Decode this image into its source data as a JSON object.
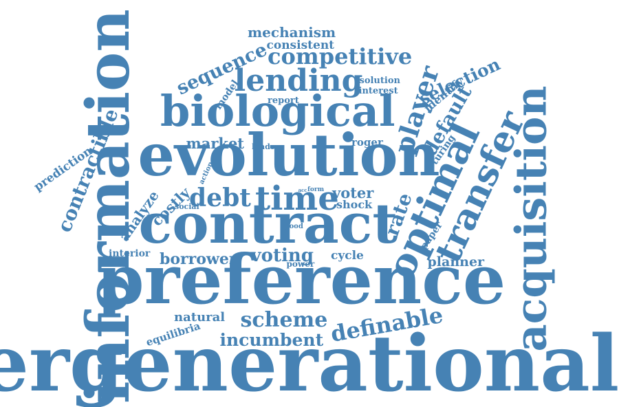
{
  "color": "#4682b4",
  "words": [
    {
      "id": "intergenerational",
      "text": "intergenerational",
      "weight": 1.0
    },
    {
      "id": "preference",
      "text": "preference",
      "weight": 0.9
    },
    {
      "id": "information",
      "text": "information",
      "weight": 0.85
    },
    {
      "id": "evolution",
      "text": "evolution",
      "weight": 0.75
    },
    {
      "id": "contract",
      "text": "contract",
      "weight": 0.72
    },
    {
      "id": "biological",
      "text": "biological",
      "weight": 0.58
    },
    {
      "id": "acquisition",
      "text": "acquisition",
      "weight": 0.5
    },
    {
      "id": "optimal",
      "text": "optimal",
      "weight": 0.5
    },
    {
      "id": "transfer",
      "text": "transfer",
      "weight": 0.5
    },
    {
      "id": "lending",
      "text": "lending",
      "weight": 0.4
    },
    {
      "id": "time",
      "text": "time",
      "weight": 0.4
    },
    {
      "id": "scheme",
      "text": "scheme",
      "weight": 0.3
    },
    {
      "id": "definable",
      "text": "definable",
      "weight": 0.3
    },
    {
      "id": "contractible",
      "text": "contractible",
      "weight": 0.3
    },
    {
      "id": "competitive",
      "text": "competitive",
      "weight": 0.3
    },
    {
      "id": "debt",
      "text": "debt",
      "weight": 0.3
    },
    {
      "id": "player",
      "text": "player",
      "weight": 0.3
    },
    {
      "id": "incumbent",
      "text": "incumbent",
      "weight": 0.26
    },
    {
      "id": "sequence",
      "text": "sequence",
      "weight": 0.24
    },
    {
      "id": "selection",
      "text": "selection",
      "weight": 0.22
    },
    {
      "id": "default",
      "text": "default",
      "weight": 0.22
    },
    {
      "id": "rate",
      "text": "rate",
      "weight": 0.22
    },
    {
      "id": "borrower",
      "text": "borrower",
      "weight": 0.22
    },
    {
      "id": "voting",
      "text": "voting",
      "weight": 0.22
    },
    {
      "id": "market",
      "text": "market",
      "weight": 0.2
    },
    {
      "id": "mechanism",
      "text": "mechanism",
      "weight": 0.2
    },
    {
      "id": "analyze",
      "text": "analyze",
      "weight": 0.2
    },
    {
      "id": "planner",
      "text": "planner",
      "weight": 0.2
    },
    {
      "id": "costly",
      "text": "costly",
      "weight": 0.18
    },
    {
      "id": "natural",
      "text": "natural",
      "weight": 0.18
    },
    {
      "id": "prediction",
      "text": "prediction",
      "weight": 0.18
    },
    {
      "id": "consistent",
      "text": "consistent",
      "weight": 0.18
    },
    {
      "id": "voter",
      "text": "voter",
      "weight": 0.18
    },
    {
      "id": "cycle",
      "text": "cycle",
      "weight": 0.18
    },
    {
      "id": "identify",
      "text": "identify",
      "weight": 0.16
    },
    {
      "id": "equilibria",
      "text": "equilibria",
      "weight": 0.15
    },
    {
      "id": "shock",
      "text": "shock",
      "weight": 0.15
    },
    {
      "id": "report",
      "text": "report",
      "weight": 0.14
    },
    {
      "id": "roger",
      "text": "roger",
      "weight": 0.14
    },
    {
      "id": "turing",
      "text": "turing",
      "weight": 0.13
    },
    {
      "id": "model",
      "text": "model",
      "weight": 0.13
    },
    {
      "id": "solution",
      "text": "solution",
      "weight": 0.13
    },
    {
      "id": "interest",
      "text": "interest",
      "weight": 0.13
    },
    {
      "id": "interior",
      "text": "interior",
      "weight": 0.13
    },
    {
      "id": "paper",
      "text": "paper",
      "weight": 0.13
    },
    {
      "id": "lender",
      "text": "lender",
      "weight": 0.11
    },
    {
      "id": "power",
      "text": "power",
      "weight": 0.1
    },
    {
      "id": "action",
      "text": "action",
      "weight": 0.1
    },
    {
      "id": "social",
      "text": "social",
      "weight": 0.1
    },
    {
      "id": "good",
      "text": "good",
      "weight": 0.1
    },
    {
      "id": "form",
      "text": "form",
      "weight": 0.08
    },
    {
      "id": "acc",
      "text": "acc",
      "weight": 0.06
    }
  ]
}
